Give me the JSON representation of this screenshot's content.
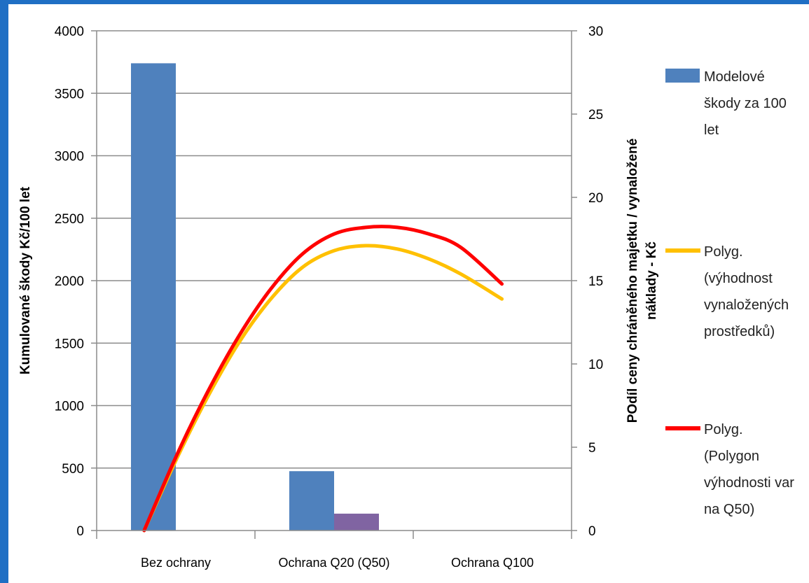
{
  "chart_data": {
    "type": "bar",
    "categories": [
      "Bez ochrany",
      "Ochrana Q20 (Q50)",
      "Ochrana Q100"
    ],
    "bar_series": [
      {
        "name": "Modelové škody za 100 let",
        "color": "#4f81bd",
        "values": [
          3740,
          475,
          null
        ]
      },
      {
        "name": "",
        "color": "#8064a2",
        "values": [
          null,
          135,
          null
        ]
      }
    ],
    "line_series": [
      {
        "name": "Polyg. (výhodnost vynaložených prostředků)",
        "color": "#ffc000",
        "x": [
          0.3,
          0.5,
          0.7,
          0.9,
          1.1,
          1.3,
          1.5,
          1.7,
          1.9,
          2.1,
          2.3,
          2.56
        ],
        "y": [
          0,
          4.2,
          8.0,
          11.3,
          13.9,
          15.8,
          16.8,
          17.1,
          16.9,
          16.3,
          15.4,
          13.9
        ]
      },
      {
        "name": "Polyg. (Polygon výhodnosti var na Q50)",
        "color": "#ff0000",
        "x": [
          0.3,
          0.5,
          0.7,
          0.9,
          1.1,
          1.3,
          1.5,
          1.7,
          1.9,
          2.1,
          2.3,
          2.56
        ],
        "y": [
          0,
          4.4,
          8.3,
          11.7,
          14.5,
          16.6,
          17.8,
          18.2,
          18.2,
          17.8,
          17.0,
          14.8
        ]
      }
    ],
    "y_left": {
      "label": "Kumulované škody Kč/100 let",
      "min": 0,
      "max": 4000,
      "ticks": [
        "0",
        "500",
        "1000",
        "1500",
        "2000",
        "2500",
        "3000",
        "3500",
        "4000"
      ]
    },
    "y_right": {
      "label_line1": "POdíl ceny chráněného majetku / vynaložené",
      "label_line2": "náklady - Kč",
      "min": 0,
      "max": 30,
      "ticks": [
        "0",
        "5",
        "10",
        "15",
        "20",
        "25",
        "30"
      ]
    },
    "grid": true,
    "legend": {
      "position": "right",
      "items": [
        {
          "marker": "box",
          "color": "#4f81bd",
          "lines": [
            "Modelové",
            "škody za 100",
            "let"
          ]
        },
        {
          "marker": "line",
          "color": "#ffc000",
          "lines": [
            "Polyg.",
            "(výhodnost",
            "vynaložených",
            "prostředků)"
          ]
        },
        {
          "marker": "line",
          "color": "#ff0000",
          "lines": [
            "Polyg.",
            "(Polygon",
            "výhodnosti var",
            "na Q50)"
          ]
        }
      ]
    }
  }
}
